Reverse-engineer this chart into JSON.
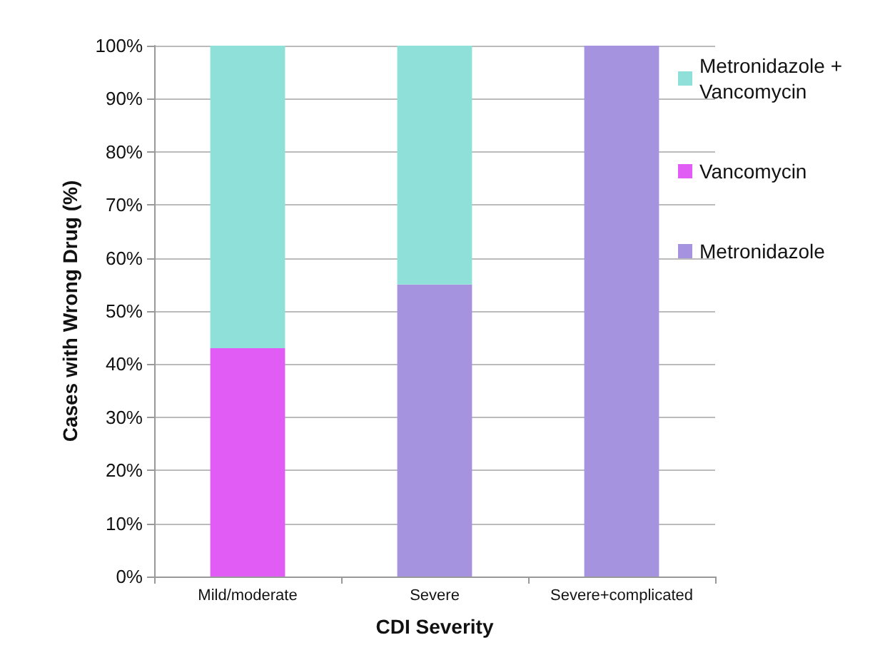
{
  "chart_data": {
    "type": "bar",
    "stacked": true,
    "xlabel": "CDI Severity",
    "ylabel": "Cases with Wrong Drug (%)",
    "categories": [
      "Mild/moderate",
      "Severe",
      "Severe+complicated"
    ],
    "series": [
      {
        "name": "Metronidazole",
        "color": "#a593e0",
        "values": [
          0,
          55,
          100
        ]
      },
      {
        "name": "Vancomycin",
        "color": "#e05cf5",
        "values": [
          43,
          0,
          0
        ]
      },
      {
        "name": "Metronidazole + Vancomycin",
        "color": "#8ee0d8",
        "values": [
          57,
          45,
          0
        ]
      }
    ],
    "ylim": [
      0,
      100
    ],
    "yticks": [
      {
        "value": 0,
        "label": "0%"
      },
      {
        "value": 10,
        "label": "10%"
      },
      {
        "value": 20,
        "label": "20%"
      },
      {
        "value": 30,
        "label": "30%"
      },
      {
        "value": 40,
        "label": "40%"
      },
      {
        "value": 50,
        "label": "50%"
      },
      {
        "value": 60,
        "label": "60%"
      },
      {
        "value": 70,
        "label": "70%"
      },
      {
        "value": 80,
        "label": "80%"
      },
      {
        "value": 90,
        "label": "90%"
      },
      {
        "value": 100,
        "label": "100%"
      }
    ],
    "grid": "y",
    "legend": "right"
  }
}
